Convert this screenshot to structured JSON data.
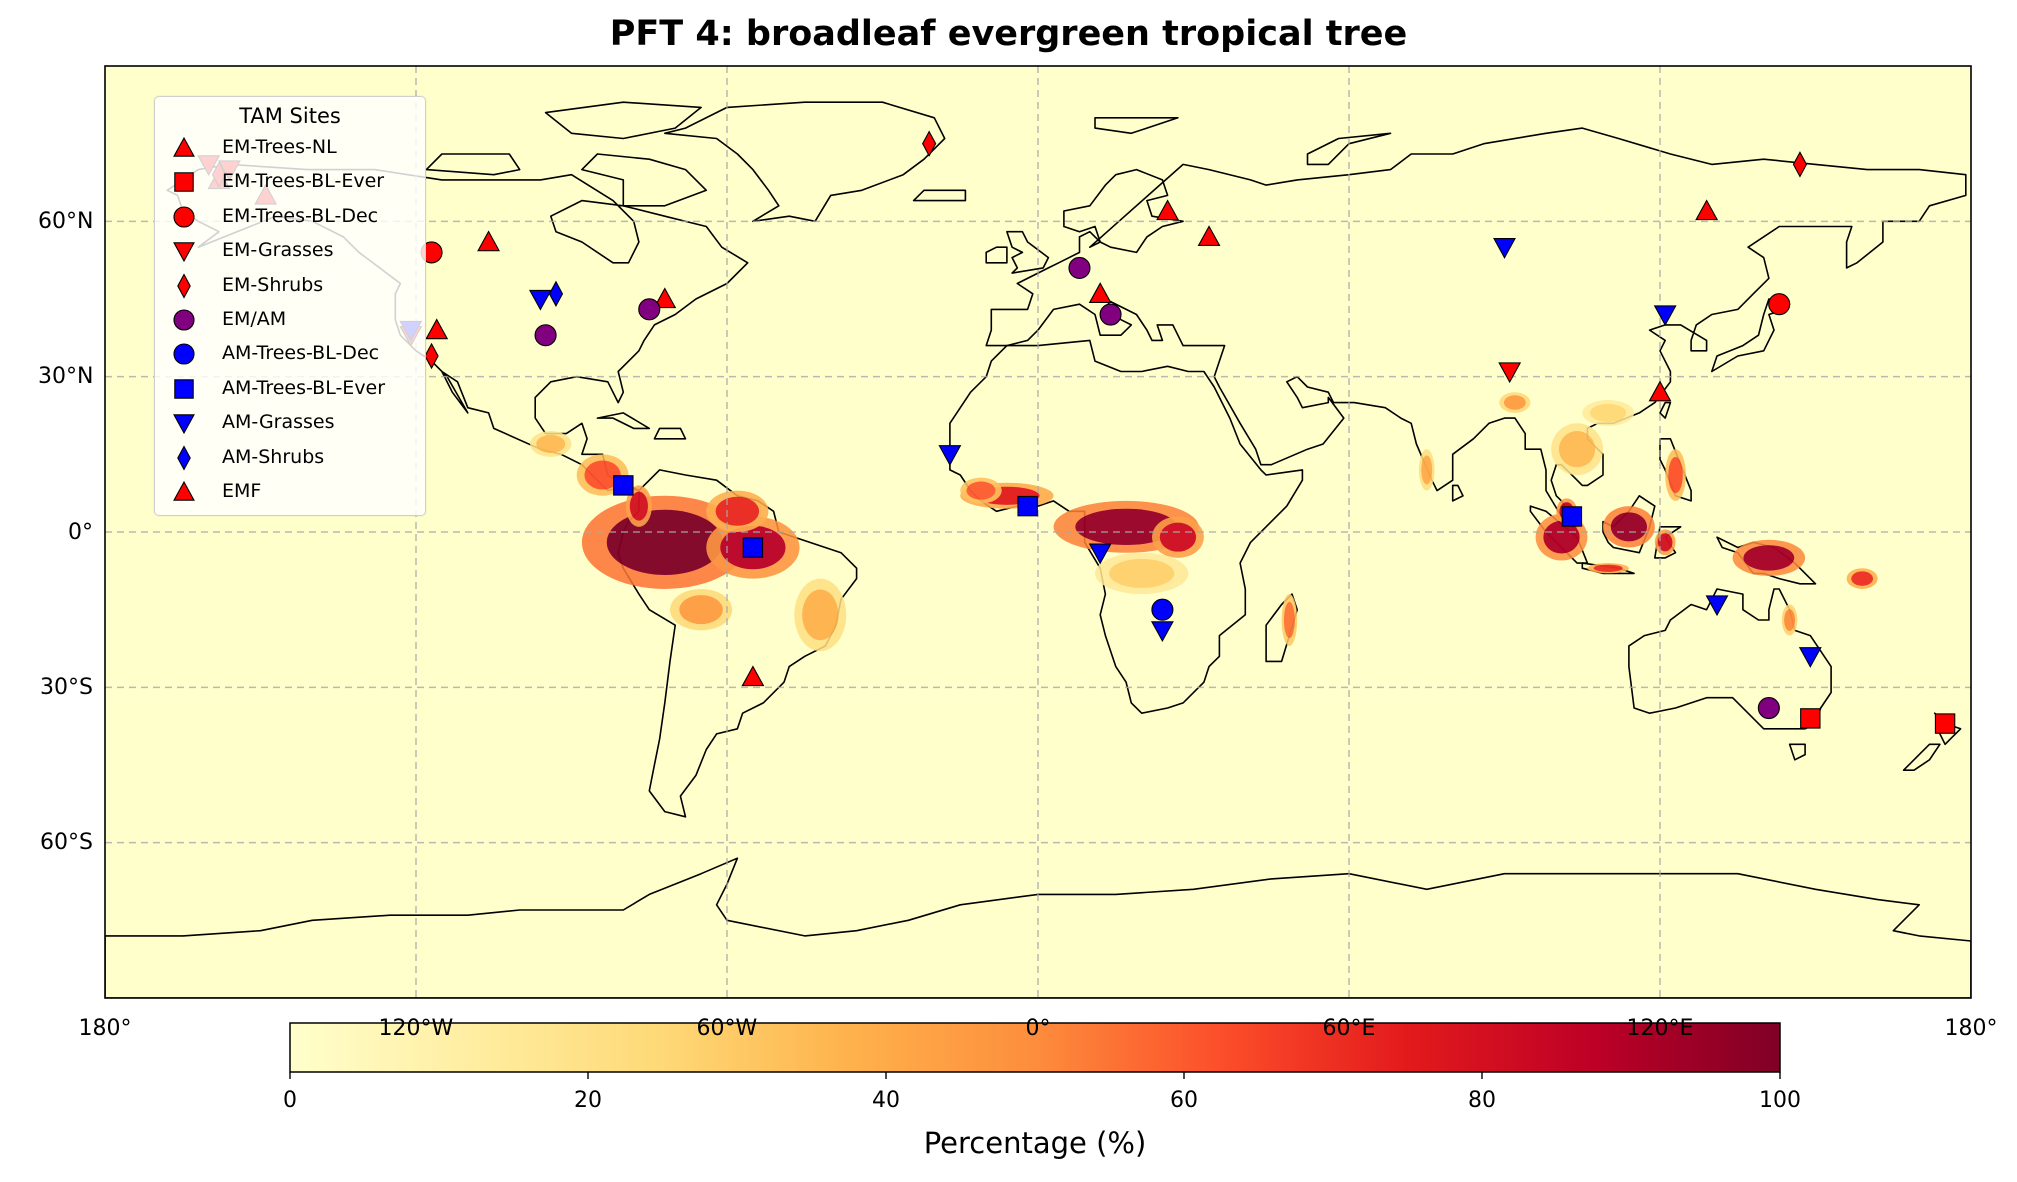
{
  "title": "PFT 4: broadleaf evergreen tropical tree",
  "map": {
    "projection": "PlateCarree",
    "extent": {
      "lon": [
        -180,
        180
      ],
      "lat": [
        -90,
        90
      ]
    },
    "background_color": "#ffffcc",
    "coastline_color": "#000000",
    "gridlines": true,
    "lon_ticks": [
      {
        "value": -180,
        "label": "180°"
      },
      {
        "value": -120,
        "label": "120°W"
      },
      {
        "value": -60,
        "label": "60°W"
      },
      {
        "value": 0,
        "label": "0°"
      },
      {
        "value": 60,
        "label": "60°E"
      },
      {
        "value": 120,
        "label": "120°E"
      },
      {
        "value": 180,
        "label": "180°"
      }
    ],
    "lat_ticks": [
      {
        "value": 60,
        "label": "60°N"
      },
      {
        "value": 30,
        "label": "30°N"
      },
      {
        "value": 0,
        "label": "0°"
      },
      {
        "value": -30,
        "label": "30°S"
      },
      {
        "value": -60,
        "label": "60°S"
      }
    ]
  },
  "colorbar": {
    "label": "Percentage (%)",
    "range": [
      0,
      100
    ],
    "ticks": [
      0,
      20,
      40,
      60,
      80,
      100
    ],
    "tick_labels": [
      "0",
      "20",
      "40",
      "60",
      "80",
      "100"
    ],
    "colormap": "YlOrRd",
    "stops": [
      "#ffffcc",
      "#ffeda0",
      "#fed976",
      "#feb24c",
      "#fd8d3c",
      "#fc4e2a",
      "#e31a1c",
      "#bd0026",
      "#800026"
    ]
  },
  "legend": {
    "title": "TAM Sites",
    "location": "upper-left",
    "items": [
      {
        "label": "EM-Trees-NL",
        "marker": "triangle-up",
        "color": "#ff0000"
      },
      {
        "label": "EM-Trees-BL-Ever",
        "marker": "square",
        "color": "#ff0000"
      },
      {
        "label": "EM-Trees-BL-Dec",
        "marker": "circle",
        "color": "#ff0000"
      },
      {
        "label": "EM-Grasses",
        "marker": "triangle-down",
        "color": "#ff0000"
      },
      {
        "label": "EM-Shrubs",
        "marker": "diamond",
        "color": "#ff0000"
      },
      {
        "label": "EM/AM",
        "marker": "circle",
        "color": "#800080"
      },
      {
        "label": "AM-Trees-BL-Dec",
        "marker": "circle",
        "color": "#0000ff"
      },
      {
        "label": "AM-Trees-BL-Ever",
        "marker": "square",
        "color": "#0000ff"
      },
      {
        "label": "AM-Grasses",
        "marker": "triangle-down",
        "color": "#0000ff"
      },
      {
        "label": "AM-Shrubs",
        "marker": "diamond",
        "color": "#0000ff"
      },
      {
        "label": "EMF",
        "marker": "triangle-up",
        "color": "#ff0000"
      }
    ]
  },
  "sites": [
    {
      "type": "EM-Trees-NL",
      "lon": -158,
      "lat": 68
    },
    {
      "type": "EM-Trees-NL",
      "lon": -149,
      "lat": 65
    },
    {
      "type": "EM-Trees-NL",
      "lon": -116,
      "lat": 39
    },
    {
      "type": "EM-Trees-NL",
      "lon": -106,
      "lat": 56
    },
    {
      "type": "EM-Trees-NL",
      "lon": -72,
      "lat": 45
    },
    {
      "type": "EM-Trees-NL",
      "lon": 12,
      "lat": 46
    },
    {
      "type": "EM-Trees-NL",
      "lon": 25,
      "lat": 62
    },
    {
      "type": "EM-Trees-NL",
      "lon": 33,
      "lat": 57
    },
    {
      "type": "EM-Trees-NL",
      "lon": 120,
      "lat": 27
    },
    {
      "type": "EM-Trees-NL",
      "lon": 129,
      "lat": 62
    },
    {
      "type": "EMF",
      "lon": -55,
      "lat": -28
    },
    {
      "type": "EM-Trees-BL-Ever",
      "lon": 149,
      "lat": -36
    },
    {
      "type": "EM-Trees-BL-Ever",
      "lon": 175,
      "lat": -37
    },
    {
      "type": "EM-Trees-BL-Dec",
      "lon": -117,
      "lat": 54
    },
    {
      "type": "EM-Trees-BL-Dec",
      "lon": 143,
      "lat": 44
    },
    {
      "type": "EM-Grasses",
      "lon": -160,
      "lat": 71
    },
    {
      "type": "EM-Grasses",
      "lon": -156,
      "lat": 70
    },
    {
      "type": "EM-Grasses",
      "lon": -121,
      "lat": 38
    },
    {
      "type": "EM-Grasses",
      "lon": 91,
      "lat": 31
    },
    {
      "type": "EM-Shrubs",
      "lon": -158,
      "lat": 69
    },
    {
      "type": "EM-Shrubs",
      "lon": -117,
      "lat": 34
    },
    {
      "type": "EM-Shrubs",
      "lon": -21,
      "lat": 75
    },
    {
      "type": "EM-Shrubs",
      "lon": 147,
      "lat": 71
    },
    {
      "type": "EM/AM",
      "lon": -95,
      "lat": 38
    },
    {
      "type": "EM/AM",
      "lon": -75,
      "lat": 43
    },
    {
      "type": "EM/AM",
      "lon": 8,
      "lat": 51
    },
    {
      "type": "EM/AM",
      "lon": 14,
      "lat": 42
    },
    {
      "type": "EM/AM",
      "lon": 141,
      "lat": -34
    },
    {
      "type": "AM-Trees-BL-Dec",
      "lon": 24,
      "lat": -15
    },
    {
      "type": "AM-Trees-BL-Ever",
      "lon": -80,
      "lat": 9
    },
    {
      "type": "AM-Trees-BL-Ever",
      "lon": -55,
      "lat": -3
    },
    {
      "type": "AM-Trees-BL-Ever",
      "lon": -2,
      "lat": 5
    },
    {
      "type": "AM-Trees-BL-Ever",
      "lon": 103,
      "lat": 3
    },
    {
      "type": "AM-Grasses",
      "lon": -121,
      "lat": 39
    },
    {
      "type": "AM-Grasses",
      "lon": -96,
      "lat": 45
    },
    {
      "type": "AM-Grasses",
      "lon": -17,
      "lat": 15
    },
    {
      "type": "AM-Grasses",
      "lon": 12,
      "lat": -4
    },
    {
      "type": "AM-Grasses",
      "lon": 24,
      "lat": -19
    },
    {
      "type": "AM-Grasses",
      "lon": 90,
      "lat": 55
    },
    {
      "type": "AM-Grasses",
      "lon": 121,
      "lat": 42
    },
    {
      "type": "AM-Grasses",
      "lon": 131,
      "lat": -14
    },
    {
      "type": "AM-Grasses",
      "lon": 149,
      "lat": -24
    },
    {
      "type": "AM-Shrubs",
      "lon": -93,
      "lat": 46
    }
  ]
}
